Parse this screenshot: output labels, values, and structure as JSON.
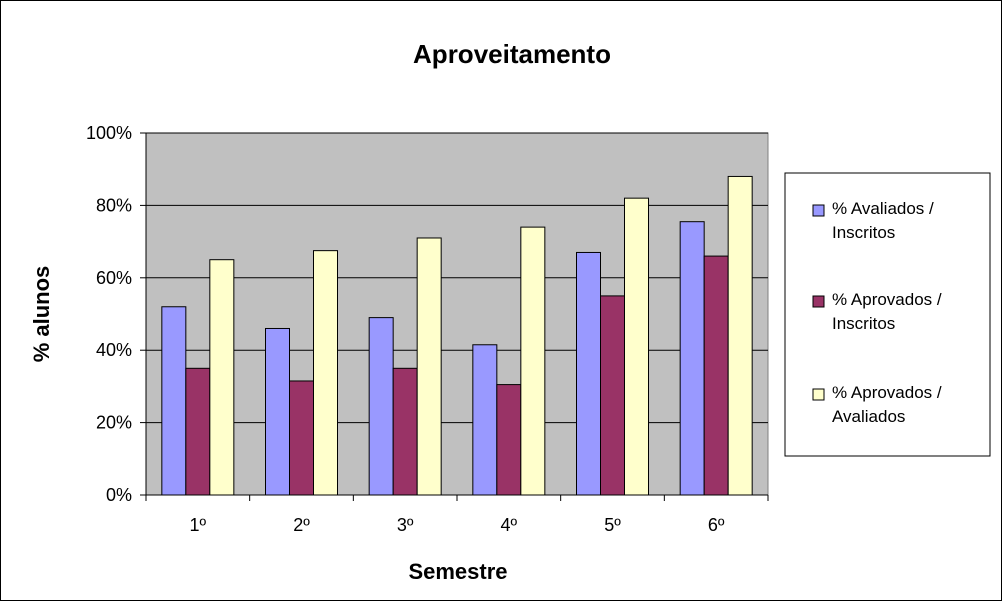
{
  "chart_data": {
    "type": "bar",
    "title": "Aproveitamento",
    "xlabel": "Semestre",
    "ylabel": "% alunos",
    "categories": [
      "1º",
      "2º",
      "3º",
      "4º",
      "5º",
      "6º"
    ],
    "ylim": [
      0,
      100
    ],
    "yticks": [
      "0%",
      "20%",
      "40%",
      "60%",
      "80%",
      "100%"
    ],
    "grid": true,
    "legend_position": "right",
    "series": [
      {
        "name": "% Avaliados / Inscritos",
        "name_lines": [
          "% Avaliados /",
          "Inscritos"
        ],
        "color": "#9999FF",
        "values": [
          52,
          46,
          49,
          41.5,
          67,
          75.5
        ]
      },
      {
        "name": "% Aprovados / Inscritos",
        "name_lines": [
          "% Aprovados /",
          "Inscritos"
        ],
        "color": "#993366",
        "values": [
          35,
          31.5,
          35,
          30.5,
          55,
          66
        ]
      },
      {
        "name": "% Aprovados / Avaliados",
        "name_lines": [
          "% Aprovados /",
          "Avaliados"
        ],
        "color": "#FFFFCC",
        "values": [
          65,
          67.5,
          71,
          74,
          82,
          88
        ]
      }
    ],
    "plot_background": "#C0C0C0"
  }
}
